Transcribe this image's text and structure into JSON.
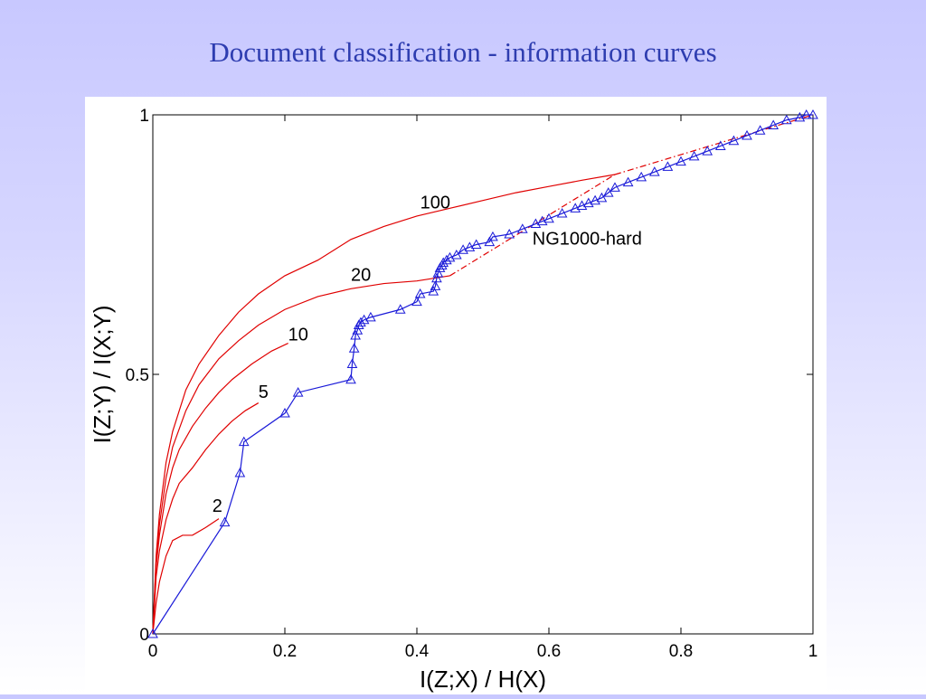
{
  "slide": {
    "title": "Document classification - information curves"
  },
  "chart_data": {
    "type": "line",
    "title": "",
    "xlabel": "I(Z;X) / H(X)",
    "ylabel": "I(Z;Y) / I(X;Y)",
    "xlim": [
      0,
      1
    ],
    "ylim": [
      0,
      1
    ],
    "xticks": [
      "0",
      "0.2",
      "0.4",
      "0.6",
      "0.8",
      "1"
    ],
    "yticks": [
      "0",
      "0.5",
      "1"
    ],
    "grid": false,
    "legend": "none",
    "series": [
      {
        "name": "2",
        "color": "#e00000",
        "marker": "none",
        "x": [
          0,
          0.005,
          0.01,
          0.02,
          0.03,
          0.045,
          0.06,
          0.08,
          0.1
        ],
        "y": [
          0,
          0.06,
          0.1,
          0.15,
          0.18,
          0.19,
          0.19,
          0.205,
          0.222
        ]
      },
      {
        "name": "5",
        "color": "#e00000",
        "marker": "none",
        "x": [
          0,
          0.005,
          0.01,
          0.02,
          0.03,
          0.04,
          0.06,
          0.08,
          0.1,
          0.12,
          0.14,
          0.16
        ],
        "y": [
          0,
          0.11,
          0.16,
          0.22,
          0.26,
          0.29,
          0.32,
          0.355,
          0.385,
          0.41,
          0.43,
          0.445
        ]
      },
      {
        "name": "10",
        "color": "#e00000",
        "marker": "none",
        "x": [
          0,
          0.005,
          0.01,
          0.02,
          0.03,
          0.04,
          0.06,
          0.08,
          0.1,
          0.12,
          0.15,
          0.18,
          0.205
        ],
        "y": [
          0,
          0.13,
          0.19,
          0.27,
          0.32,
          0.355,
          0.4,
          0.435,
          0.465,
          0.49,
          0.52,
          0.545,
          0.56
        ]
      },
      {
        "name": "20",
        "color": "#e00000",
        "marker": "none",
        "x": [
          0,
          0.005,
          0.01,
          0.02,
          0.03,
          0.05,
          0.07,
          0.1,
          0.13,
          0.16,
          0.2,
          0.25,
          0.3,
          0.35,
          0.4,
          0.45
        ],
        "y": [
          0,
          0.14,
          0.21,
          0.3,
          0.36,
          0.43,
          0.48,
          0.53,
          0.565,
          0.595,
          0.625,
          0.65,
          0.665,
          0.675,
          0.68,
          0.69
        ]
      },
      {
        "name": "100",
        "color": "#e00000",
        "marker": "none",
        "x": [
          0,
          0.005,
          0.01,
          0.02,
          0.03,
          0.05,
          0.07,
          0.1,
          0.13,
          0.16,
          0.2,
          0.25,
          0.3,
          0.35,
          0.4,
          0.45,
          0.5,
          0.55,
          0.6,
          0.65,
          0.7
        ],
        "y": [
          0,
          0.15,
          0.23,
          0.33,
          0.39,
          0.47,
          0.52,
          0.575,
          0.62,
          0.655,
          0.69,
          0.72,
          0.76,
          0.785,
          0.805,
          0.82,
          0.835,
          0.85,
          0.862,
          0.874,
          0.885
        ]
      },
      {
        "name": "NG1000-hard",
        "color": "#1a1ad8",
        "marker": "triangle",
        "x": [
          0,
          0.109,
          0.132,
          0.138,
          0.2,
          0.22,
          0.3,
          0.302,
          0.305,
          0.307,
          0.31,
          0.312,
          0.315,
          0.32,
          0.33,
          0.375,
          0.4,
          0.405,
          0.425,
          0.428,
          0.43,
          0.432,
          0.435,
          0.438,
          0.44,
          0.445,
          0.45,
          0.46,
          0.47,
          0.48,
          0.49,
          0.51,
          0.515,
          0.54,
          0.56,
          0.58,
          0.59,
          0.6,
          0.62,
          0.64,
          0.65,
          0.66,
          0.67,
          0.68,
          0.69,
          0.7,
          0.72,
          0.74,
          0.76,
          0.78,
          0.8,
          0.82,
          0.84,
          0.86,
          0.88,
          0.9,
          0.92,
          0.94,
          0.96,
          0.98,
          0.99,
          1
        ],
        "y": [
          0,
          0.215,
          0.31,
          0.37,
          0.425,
          0.465,
          0.49,
          0.52,
          0.55,
          0.575,
          0.585,
          0.595,
          0.6,
          0.605,
          0.61,
          0.625,
          0.64,
          0.655,
          0.66,
          0.67,
          0.685,
          0.695,
          0.705,
          0.71,
          0.715,
          0.72,
          0.725,
          0.73,
          0.74,
          0.745,
          0.75,
          0.755,
          0.765,
          0.77,
          0.78,
          0.79,
          0.795,
          0.8,
          0.81,
          0.82,
          0.825,
          0.83,
          0.835,
          0.84,
          0.85,
          0.86,
          0.87,
          0.88,
          0.89,
          0.9,
          0.91,
          0.92,
          0.93,
          0.94,
          0.95,
          0.96,
          0.97,
          0.98,
          0.99,
          0.995,
          1,
          1
        ]
      }
    ],
    "dashed_extensions": [
      {
        "color": "#e00000",
        "x": [
          0.45,
          0.7
        ],
        "y": [
          0.69,
          0.885
        ]
      },
      {
        "color": "#e00000",
        "x": [
          0.7,
          1.0
        ],
        "y": [
          0.885,
          1.0
        ]
      }
    ],
    "annotations": [
      {
        "text": "100",
        "x": 0.405,
        "y": 0.82
      },
      {
        "text": "20",
        "x": 0.3,
        "y": 0.68
      },
      {
        "text": "10",
        "x": 0.205,
        "y": 0.565
      },
      {
        "text": "5",
        "x": 0.16,
        "y": 0.455
      },
      {
        "text": "2",
        "x": 0.09,
        "y": 0.235
      },
      {
        "text": "NG1000-hard",
        "x": 0.575,
        "y": 0.75
      }
    ]
  }
}
